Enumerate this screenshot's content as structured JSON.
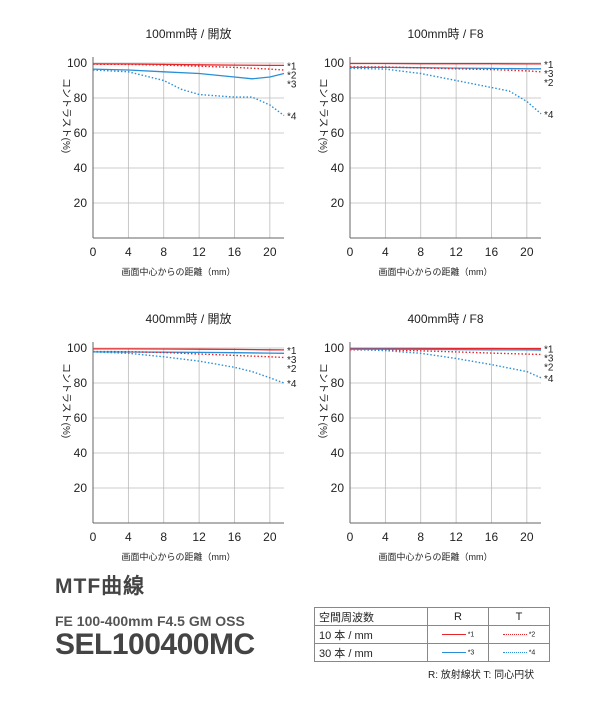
{
  "charts": {
    "ylabel": "コントラスト(%)",
    "xlabel": "画面中心からの距離（mm）",
    "y_ticks": [
      "100",
      "80",
      "60",
      "40",
      "20"
    ],
    "x_ticks": [
      "0",
      "4",
      "8",
      "12",
      "16",
      "20"
    ],
    "series_labels": [
      "*1",
      "*2",
      "*3",
      "*4"
    ]
  },
  "chart_data": [
    {
      "type": "line",
      "title": "100mm時 / 開放",
      "xlabel": "画面中心からの距離（mm）",
      "ylabel": "コントラスト(%)",
      "xlim": [
        0,
        21.6
      ],
      "ylim": [
        0,
        100
      ],
      "series": [
        {
          "name": "*1",
          "x": [
            0,
            4,
            8,
            12,
            16,
            20,
            21.6
          ],
          "values": [
            99.5,
            99.4,
            99.2,
            99,
            98.8,
            98.6,
            98.6
          ]
        },
        {
          "name": "*2",
          "x": [
            0,
            4,
            8,
            12,
            16,
            20,
            21.6
          ],
          "values": [
            99.3,
            99.2,
            98.8,
            98.2,
            97.5,
            96.5,
            96
          ]
        },
        {
          "name": "*3",
          "x": [
            0,
            4,
            8,
            12,
            16,
            18,
            20,
            21.6
          ],
          "values": [
            96.5,
            96,
            95,
            94,
            92,
            91,
            92,
            94
          ]
        },
        {
          "name": "*4",
          "x": [
            0,
            4,
            8,
            10,
            12,
            16,
            18,
            20,
            21.6
          ],
          "values": [
            96,
            95,
            90,
            85,
            82,
            80.5,
            80.5,
            76,
            70
          ]
        }
      ]
    },
    {
      "type": "line",
      "title": "100mm時 / F8",
      "xlabel": "画面中心からの距離（mm）",
      "ylabel": "コントラスト(%)",
      "xlim": [
        0,
        21.6
      ],
      "ylim": [
        0,
        100
      ],
      "series": [
        {
          "name": "*1",
          "x": [
            0,
            4,
            8,
            12,
            16,
            20,
            21.6
          ],
          "values": [
            99.7,
            99.7,
            99.6,
            99.6,
            99.6,
            99.5,
            99.5
          ]
        },
        {
          "name": "*3",
          "x": [
            0,
            4,
            8,
            12,
            16,
            20,
            21.6
          ],
          "values": [
            97.5,
            97.5,
            97.3,
            97.1,
            96.9,
            96.7,
            96.7
          ]
        },
        {
          "name": "*2",
          "x": [
            0,
            4,
            8,
            12,
            16,
            20,
            21.6
          ],
          "values": [
            97.8,
            97.7,
            97.2,
            96.7,
            96.2,
            95.5,
            95
          ]
        },
        {
          "name": "*4",
          "x": [
            0,
            4,
            8,
            12,
            16,
            18,
            20,
            21.6
          ],
          "values": [
            97,
            96.5,
            94,
            90,
            86,
            84,
            78,
            71
          ]
        }
      ]
    },
    {
      "type": "line",
      "title": "400mm時 / 開放",
      "xlabel": "画面中心からの距離（mm）",
      "ylabel": "コントラスト(%)",
      "xlim": [
        0,
        21.6
      ],
      "ylim": [
        0,
        100
      ],
      "series": [
        {
          "name": "*1",
          "x": [
            0,
            4,
            8,
            12,
            16,
            20,
            21.6
          ],
          "values": [
            99.5,
            99.5,
            99.4,
            99.3,
            99.2,
            99,
            98.9
          ]
        },
        {
          "name": "*3",
          "x": [
            0,
            4,
            8,
            12,
            16,
            20,
            21.6
          ],
          "values": [
            97.8,
            97.7,
            97.6,
            97.5,
            97.3,
            97.1,
            97
          ]
        },
        {
          "name": "*2",
          "x": [
            0,
            4,
            8,
            12,
            16,
            20,
            21.6
          ],
          "values": [
            98,
            97.9,
            97.4,
            96.6,
            95.8,
            95,
            94.6
          ]
        },
        {
          "name": "*4",
          "x": [
            0,
            4,
            8,
            12,
            16,
            18,
            20,
            21.6
          ],
          "values": [
            97.8,
            97,
            95,
            92.5,
            89,
            86.5,
            83,
            80
          ]
        }
      ]
    },
    {
      "type": "line",
      "title": "400mm時 / F8",
      "xlabel": "画面中心からの距離（mm）",
      "ylabel": "コントラスト(%)",
      "xlim": [
        0,
        21.6
      ],
      "ylim": [
        0,
        100
      ],
      "series": [
        {
          "name": "*1",
          "x": [
            0,
            4,
            8,
            12,
            16,
            20,
            21.6
          ],
          "values": [
            99.8,
            99.8,
            99.8,
            99.7,
            99.7,
            99.6,
            99.6
          ]
        },
        {
          "name": "*3",
          "x": [
            0,
            4,
            8,
            12,
            16,
            20,
            21.6
          ],
          "values": [
            99.3,
            99.3,
            99.2,
            99.1,
            99,
            98.9,
            98.8
          ]
        },
        {
          "name": "*2",
          "x": [
            0,
            4,
            8,
            12,
            16,
            20,
            21.6
          ],
          "values": [
            99,
            98.8,
            98.4,
            97.8,
            97.1,
            96.5,
            96.3
          ]
        },
        {
          "name": "*4",
          "x": [
            0,
            4,
            8,
            12,
            16,
            20,
            21.6
          ],
          "values": [
            99.3,
            98.5,
            97,
            94,
            90.5,
            86.5,
            83
          ]
        }
      ]
    }
  ],
  "header": {
    "title": "MTF曲線",
    "lens_name": "FE 100-400mm F4.5 GM OSS",
    "model": "SEL100400MC"
  },
  "legend": {
    "header": "空間周波数",
    "col_r": "R",
    "col_t": "T",
    "rows": [
      {
        "label": "10 本 / mm",
        "r": "*1",
        "t": "*2"
      },
      {
        "label": "30 本 / mm",
        "r": "*3",
        "t": "*4"
      }
    ],
    "note": "R: 放射線状  T: 同心円状"
  },
  "colors": {
    "red": "#e8262a",
    "blue": "#2a8fd8",
    "grid": "#bbbbbb",
    "axis": "#666666"
  }
}
